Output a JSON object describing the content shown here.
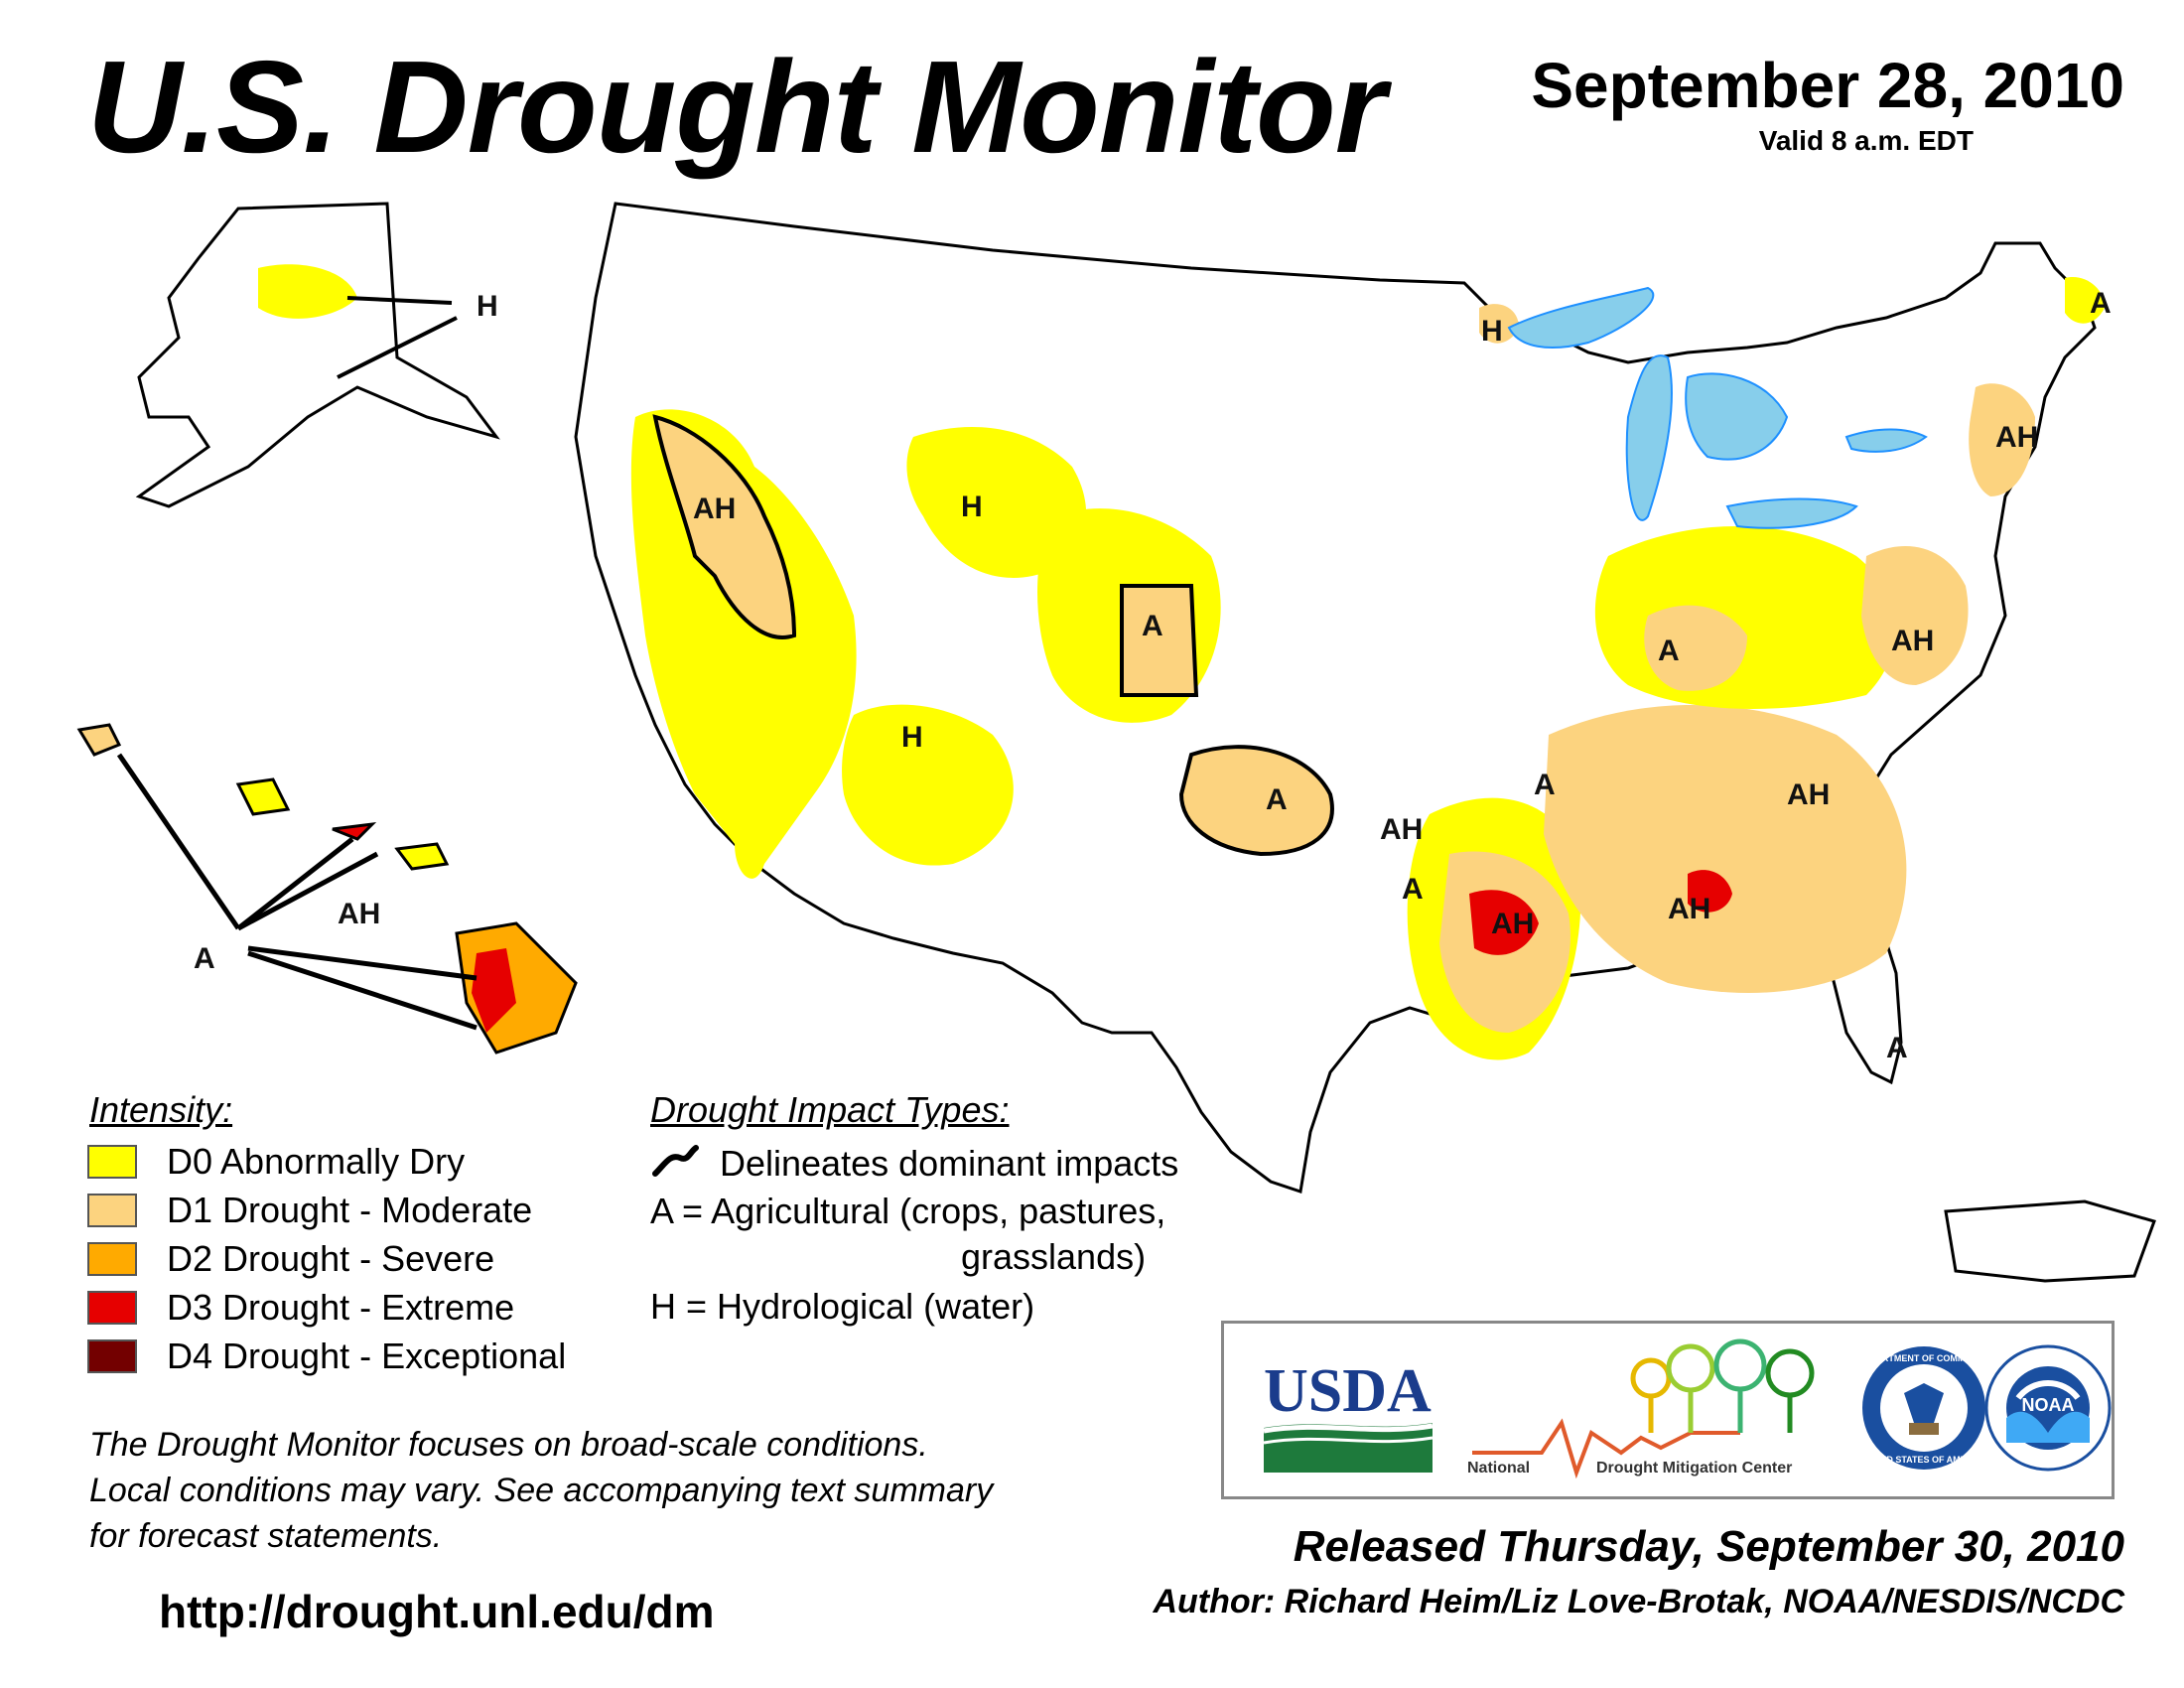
{
  "header": {
    "title": "U.S. Drought Monitor",
    "date": "September 28, 2010",
    "valid": "Valid 8 a.m. EDT"
  },
  "intensity_legend": {
    "heading": "Intensity:",
    "items": [
      {
        "label": "D0 Abnormally Dry",
        "color": "#ffff00"
      },
      {
        "label": "D1 Drought - Moderate",
        "color": "#fcd37f"
      },
      {
        "label": "D2 Drought - Severe",
        "color": "#ffaa00"
      },
      {
        "label": "D3 Drought - Extreme",
        "color": "#e60000"
      },
      {
        "label": "D4 Drought - Exceptional",
        "color": "#730000"
      }
    ]
  },
  "impact_legend": {
    "heading": "Drought Impact Types:",
    "delineates": "Delineates dominant impacts",
    "agricultural_line1": "A = Agricultural (crops, pastures,",
    "agricultural_line2": "grasslands)",
    "hydrological": "H = Hydrological (water)"
  },
  "map_labels": {
    "alaska_h": "H",
    "hawaii_a": "A",
    "hawaii_ah": "AH",
    "nw_ah": "AH",
    "wy_h": "H",
    "ut_h": "H",
    "co_a": "A",
    "mn_h": "H",
    "ok_a": "A",
    "ar_ah": "AH",
    "tx_a": "A",
    "la_ah": "AH",
    "tn_a": "A",
    "ky_a": "A",
    "al_ah": "AH",
    "sc_ah": "AH",
    "va_ah": "AH",
    "ne_ah": "AH",
    "me_a": "A",
    "fl_a": "A"
  },
  "disclaimer": [
    "The Drought Monitor focuses on broad-scale conditions.",
    "Local conditions may vary. See accompanying text summary",
    "for forecast statements."
  ],
  "url": "http://drought.unl.edu/dm",
  "released": "Released Thursday, September 30, 2010",
  "author": "Author: Richard Heim/Liz Love-Brotak, NOAA/NESDIS/NCDC",
  "logos": {
    "usda": "USDA",
    "ndmc_line1": "National",
    "ndmc_line2": "Drought Mitigation Center",
    "doc_ring_top": "DEPARTMENT OF COMMERCE",
    "doc_ring_bottom": "UNITED STATES OF AMERICA",
    "noaa": "NOAA"
  },
  "colors": {
    "state_border": "#000000",
    "county_line": "#a0a0a0",
    "river": "#1e90ff",
    "lake": "#87ceeb",
    "impact_line": "#000000"
  }
}
